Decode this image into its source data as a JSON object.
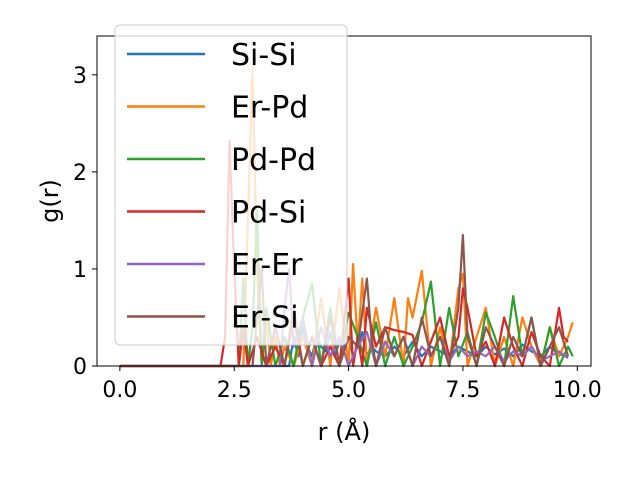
{
  "chart_data": {
    "type": "line",
    "title": "",
    "xlabel": "r (Å)",
    "ylabel": "g(r)",
    "xlim": [
      -0.5,
      10.3
    ],
    "ylim": [
      0,
      3.4
    ],
    "xticks": [
      {
        "value": 0.0,
        "label": "0.0"
      },
      {
        "value": 2.5,
        "label": "2.5"
      },
      {
        "value": 5.0,
        "label": "5.0"
      },
      {
        "value": 7.5,
        "label": "7.5"
      },
      {
        "value": 10.0,
        "label": "10.0"
      }
    ],
    "yticks": [
      {
        "value": 0,
        "label": "0"
      },
      {
        "value": 1,
        "label": "1"
      },
      {
        "value": 2,
        "label": "2"
      },
      {
        "value": 3,
        "label": "3"
      }
    ],
    "grid": false,
    "legend_position": "upper-left",
    "series": [
      {
        "name": "Si-Si",
        "color": "#1f77b4",
        "x": [
          0,
          3.7,
          3.8,
          3.9,
          4.0,
          4.1,
          4.2,
          4.3,
          4.4,
          4.5,
          4.6,
          4.7,
          4.8,
          4.9,
          5.0,
          5.1,
          5.2,
          5.3,
          5.4,
          5.5,
          5.6,
          5.8,
          6.0,
          6.2,
          6.4,
          6.6,
          6.8,
          7.0,
          7.2,
          7.4,
          7.6,
          7.8,
          8.0,
          8.2,
          8.4,
          8.6,
          8.8,
          9.0,
          9.2,
          9.4,
          9.6,
          9.8
        ],
        "y": [
          0,
          0,
          0.3,
          0.1,
          0.4,
          0.2,
          0.1,
          0.3,
          0.2,
          0.15,
          0.35,
          0.1,
          0.25,
          0.2,
          0.3,
          0.1,
          0.2,
          0.35,
          0.1,
          0.2,
          0.15,
          0.1,
          0.2,
          0.1,
          0.25,
          0.1,
          0.2,
          0.15,
          0.1,
          0.2,
          0.15,
          0.1,
          0.2,
          0.12,
          0.18,
          0.1,
          0.22,
          0.15,
          0.1,
          0.2,
          0.12,
          0.1
        ]
      },
      {
        "name": "Er-Pd",
        "color": "#ff7f0e",
        "x": [
          0,
          2.7,
          2.8,
          2.9,
          3.0,
          3.1,
          3.2,
          3.3,
          3.4,
          3.5,
          3.6,
          3.8,
          4.0,
          4.2,
          4.4,
          4.6,
          4.8,
          5.0,
          5.1,
          5.2,
          5.3,
          5.4,
          5.6,
          5.8,
          6.0,
          6.2,
          6.3,
          6.4,
          6.6,
          6.8,
          7.0,
          7.2,
          7.4,
          7.5,
          7.6,
          7.8,
          8.0,
          8.2,
          8.4,
          8.6,
          8.8,
          9.0,
          9.2,
          9.4,
          9.6,
          9.8,
          9.9
        ],
        "y": [
          0,
          0,
          1.5,
          3.05,
          1.0,
          0.0,
          0.5,
          0.0,
          0.3,
          0.0,
          0.2,
          0.0,
          0.3,
          0.0,
          0.7,
          0.0,
          0.8,
          0.0,
          1.05,
          0.2,
          0.9,
          0.0,
          0.6,
          0.1,
          0.7,
          0.0,
          0.7,
          0.5,
          0.98,
          0.0,
          0.4,
          0.0,
          0.8,
          0.95,
          0.0,
          0.3,
          0.6,
          0.0,
          0.3,
          0.0,
          0.5,
          0.2,
          0.0,
          0.4,
          0.1,
          0.3,
          0.45
        ]
      },
      {
        "name": "Pd-Pd",
        "color": "#2ca02c",
        "x": [
          0,
          2.6,
          2.7,
          2.8,
          2.9,
          3.0,
          3.1,
          3.2,
          3.4,
          3.6,
          3.8,
          4.0,
          4.2,
          4.4,
          4.6,
          4.8,
          5.0,
          5.2,
          5.4,
          5.6,
          5.8,
          6.0,
          6.2,
          6.4,
          6.6,
          6.8,
          7.0,
          7.2,
          7.4,
          7.6,
          7.8,
          8.0,
          8.2,
          8.4,
          8.6,
          8.8,
          9.0,
          9.2,
          9.4,
          9.6,
          9.8,
          9.9
        ],
        "y": [
          0,
          0,
          0.9,
          0.0,
          0.4,
          1.6,
          0.0,
          0.6,
          0.0,
          0.3,
          0.0,
          0.5,
          0.85,
          0.0,
          0.6,
          0.0,
          0.55,
          0.3,
          0.0,
          0.45,
          0.0,
          0.3,
          0.0,
          0.2,
          0.45,
          0.87,
          0.0,
          0.6,
          0.1,
          0.35,
          0.0,
          0.55,
          0.3,
          0.0,
          0.72,
          0.1,
          0.5,
          0.0,
          0.4,
          0.0,
          0.2,
          0.1
        ]
      },
      {
        "name": "Pd-Si",
        "color": "#d62728",
        "x": [
          0,
          2.2,
          2.3,
          2.4,
          2.5,
          2.6,
          2.7,
          2.8,
          3.0,
          3.2,
          3.4,
          3.6,
          3.8,
          4.0,
          4.2,
          4.4,
          4.6,
          4.8,
          5.0,
          5.1,
          5.2,
          5.3,
          5.4,
          5.6,
          5.8,
          6.0,
          6.2,
          6.4,
          6.6,
          6.8,
          7.0,
          7.2,
          7.4,
          7.5,
          7.6,
          7.8,
          8.0,
          8.2,
          8.4,
          8.6,
          8.8,
          9.0,
          9.2,
          9.4,
          9.6,
          9.7,
          9.8
        ],
        "y": [
          0,
          0,
          0.3,
          2.32,
          1.0,
          0.0,
          0.4,
          0.0,
          0.3,
          0.0,
          0.2,
          0.0,
          0.5,
          0.0,
          0.3,
          0.0,
          0.2,
          0.0,
          0.9,
          0.0,
          0.3,
          0.0,
          0.6,
          0.2,
          0.4,
          0.37,
          0.35,
          0.32,
          0.0,
          0.25,
          0.5,
          0.1,
          0.3,
          0.8,
          0.6,
          0.1,
          0.25,
          0.0,
          0.5,
          0.2,
          0.0,
          0.35,
          0.1,
          0.0,
          0.6,
          0.3,
          0.25
        ]
      },
      {
        "name": "Er-Er",
        "color": "#9467bd",
        "x": [
          0,
          3.5,
          3.6,
          3.7,
          3.8,
          4.0,
          4.2,
          4.4,
          4.6,
          4.8,
          5.0,
          5.2,
          5.4,
          5.6,
          5.8,
          6.0,
          6.2,
          6.4,
          6.6,
          6.8,
          7.0,
          7.2,
          7.4,
          7.6,
          7.8,
          8.0,
          8.2,
          8.4,
          8.6,
          8.8,
          9.0,
          9.2,
          9.4,
          9.6,
          9.8
        ],
        "y": [
          0,
          0,
          0.6,
          1.0,
          0.2,
          0.5,
          0.0,
          0.4,
          0.1,
          0.3,
          0.0,
          0.2,
          0.35,
          0.0,
          0.25,
          0.1,
          0.3,
          0.0,
          0.2,
          0.1,
          0.3,
          0.05,
          0.2,
          0.1,
          0.15,
          0.1,
          0.2,
          0.05,
          0.15,
          0.1,
          0.2,
          0.05,
          0.1,
          0.15,
          0.08
        ]
      },
      {
        "name": "Er-Si",
        "color": "#8c564b",
        "x": [
          0,
          2.9,
          3.0,
          3.1,
          3.2,
          3.4,
          3.6,
          3.8,
          4.0,
          4.2,
          4.4,
          4.6,
          4.8,
          5.0,
          5.2,
          5.4,
          5.5,
          5.6,
          5.8,
          6.0,
          6.2,
          6.4,
          6.6,
          6.8,
          7.0,
          7.2,
          7.4,
          7.5,
          7.6,
          7.8,
          8.0,
          8.2,
          8.4,
          8.6,
          8.8,
          9.0,
          9.2,
          9.4,
          9.6,
          9.8
        ],
        "y": [
          0,
          0,
          0.5,
          1.0,
          0.0,
          0.4,
          0.0,
          0.6,
          0.0,
          0.3,
          0.0,
          0.5,
          0.0,
          0.3,
          0.2,
          0.9,
          0.3,
          0.0,
          0.4,
          0.1,
          0.3,
          0.0,
          0.5,
          0.1,
          0.3,
          0.0,
          0.6,
          1.35,
          0.3,
          0.0,
          0.4,
          0.2,
          0.0,
          0.3,
          0.1,
          0.5,
          0.0,
          0.2,
          0.4,
          0.1
        ]
      }
    ]
  }
}
